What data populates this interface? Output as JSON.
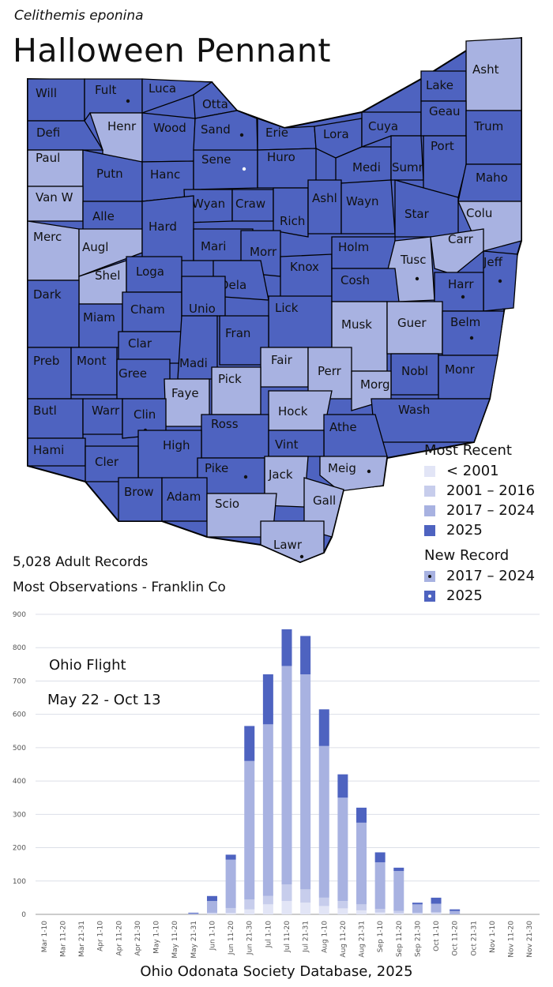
{
  "species": "Celithemis eponina",
  "common_name": "Halloween Pennant",
  "colors": {
    "pre2001": "#e2e5f6",
    "y2001_2016": "#c7cdec",
    "y2017_2024": "#a8b2e1",
    "y2025": "#4e63c0",
    "border": "#000000"
  },
  "legend": {
    "recent_title": "Most Recent",
    "recent_items": [
      "< 2001",
      "2001 – 2016",
      "2017 – 2024",
      "2025"
    ],
    "new_title": "New Record",
    "new_items": [
      "2017 – 2024",
      "2025"
    ]
  },
  "stats": {
    "records": "5,028 Adult Records",
    "most": "Most Observations - Franklin Co"
  },
  "footer": "Ohio Odonata Society Database, 2025",
  "map": {
    "counties": [
      {
        "name": "Will",
        "cat": "y2025"
      },
      {
        "name": "Fult",
        "cat": "y2025",
        "newrec": "y2025"
      },
      {
        "name": "Luca",
        "cat": "y2025"
      },
      {
        "name": "Otta",
        "cat": "y2025"
      },
      {
        "name": "Henr",
        "cat": "y2017_2024"
      },
      {
        "name": "Wood",
        "cat": "y2025"
      },
      {
        "name": "Sand",
        "cat": "y2025",
        "newrec": "y2025"
      },
      {
        "name": "Erie",
        "cat": "y2025"
      },
      {
        "name": "Lora",
        "cat": "y2025"
      },
      {
        "name": "Cuya",
        "cat": "y2025"
      },
      {
        "name": "Lake",
        "cat": "y2025"
      },
      {
        "name": "Asht",
        "cat": "y2017_2024"
      },
      {
        "name": "Geau",
        "cat": "y2025"
      },
      {
        "name": "Trum",
        "cat": "y2025"
      },
      {
        "name": "Defi",
        "cat": "y2025"
      },
      {
        "name": "Paul",
        "cat": "y2017_2024"
      },
      {
        "name": "Putn",
        "cat": "y2025"
      },
      {
        "name": "Hanc",
        "cat": "y2025"
      },
      {
        "name": "Sene",
        "cat": "y2025",
        "newrec": "y2017_2024"
      },
      {
        "name": "Huro",
        "cat": "y2025"
      },
      {
        "name": "Medi",
        "cat": "y2025"
      },
      {
        "name": "Summ",
        "cat": "y2025"
      },
      {
        "name": "Port",
        "cat": "y2025"
      },
      {
        "name": "Maho",
        "cat": "y2025"
      },
      {
        "name": "Van W",
        "cat": "y2017_2024"
      },
      {
        "name": "Alle",
        "cat": "y2025"
      },
      {
        "name": "Wyan",
        "cat": "y2025"
      },
      {
        "name": "Craw",
        "cat": "y2025"
      },
      {
        "name": "Rich",
        "cat": "y2025"
      },
      {
        "name": "Ashl",
        "cat": "y2025"
      },
      {
        "name": "Wayn",
        "cat": "y2025"
      },
      {
        "name": "Star",
        "cat": "y2025"
      },
      {
        "name": "Colu",
        "cat": "y2017_2024"
      },
      {
        "name": "Merc",
        "cat": "y2017_2024"
      },
      {
        "name": "Augl",
        "cat": "y2017_2024"
      },
      {
        "name": "Hard",
        "cat": "y2025"
      },
      {
        "name": "Mari",
        "cat": "y2025"
      },
      {
        "name": "Morr",
        "cat": "y2025"
      },
      {
        "name": "Knox",
        "cat": "y2025"
      },
      {
        "name": "Holm",
        "cat": "y2025"
      },
      {
        "name": "Tusc",
        "cat": "y2017_2024",
        "newrec": "y2025"
      },
      {
        "name": "Carr",
        "cat": "y2017_2024"
      },
      {
        "name": "Jeff",
        "cat": "y2025",
        "newrec": "y2025"
      },
      {
        "name": "Shel",
        "cat": "y2017_2024"
      },
      {
        "name": "Loga",
        "cat": "y2025"
      },
      {
        "name": "Dela",
        "cat": "y2025"
      },
      {
        "name": "Lick",
        "cat": "y2025"
      },
      {
        "name": "Cosh",
        "cat": "y2025"
      },
      {
        "name": "Harr",
        "cat": "y2025",
        "newrec": "y2025"
      },
      {
        "name": "Dark",
        "cat": "y2025"
      },
      {
        "name": "Miam",
        "cat": "y2025"
      },
      {
        "name": "Cham",
        "cat": "y2025"
      },
      {
        "name": "Unio",
        "cat": "y2025"
      },
      {
        "name": "Fran",
        "cat": "y2025"
      },
      {
        "name": "Musk",
        "cat": "y2017_2024"
      },
      {
        "name": "Guer",
        "cat": "y2017_2024"
      },
      {
        "name": "Belm",
        "cat": "y2025",
        "newrec": "y2025"
      },
      {
        "name": "Clar",
        "cat": "y2025"
      },
      {
        "name": "Madi",
        "cat": "y2025"
      },
      {
        "name": "Fair",
        "cat": "y2017_2024"
      },
      {
        "name": "Perr",
        "cat": "y2017_2024"
      },
      {
        "name": "Nobl",
        "cat": "y2025"
      },
      {
        "name": "Monr",
        "cat": "y2025"
      },
      {
        "name": "Preb",
        "cat": "y2025"
      },
      {
        "name": "Mont",
        "cat": "y2025"
      },
      {
        "name": "Gree",
        "cat": "y2025"
      },
      {
        "name": "Pick",
        "cat": "y2017_2024"
      },
      {
        "name": "Morg",
        "cat": "y2017_2024"
      },
      {
        "name": "Faye",
        "cat": "y2017_2024"
      },
      {
        "name": "Wash",
        "cat": "y2025"
      },
      {
        "name": "Butl",
        "cat": "y2025"
      },
      {
        "name": "Warr",
        "cat": "y2025"
      },
      {
        "name": "Clin",
        "cat": "y2025",
        "newrec": "y2025"
      },
      {
        "name": "Hock",
        "cat": "y2017_2024"
      },
      {
        "name": "Athe",
        "cat": "y2025"
      },
      {
        "name": "Ross",
        "cat": "y2025"
      },
      {
        "name": "Hami",
        "cat": "y2025"
      },
      {
        "name": "High",
        "cat": "y2025"
      },
      {
        "name": "Vint",
        "cat": "y2025"
      },
      {
        "name": "Meig",
        "cat": "y2017_2024",
        "newrec": "y2025"
      },
      {
        "name": "Cler",
        "cat": "y2025"
      },
      {
        "name": "Pike",
        "cat": "y2025",
        "newrec": "y2025"
      },
      {
        "name": "Jack",
        "cat": "y2017_2024"
      },
      {
        "name": "Brow",
        "cat": "y2025"
      },
      {
        "name": "Adam",
        "cat": "y2025"
      },
      {
        "name": "Scio",
        "cat": "y2017_2024"
      },
      {
        "name": "Gall",
        "cat": "y2017_2024"
      },
      {
        "name": "Lawr",
        "cat": "y2017_2024",
        "newrec": "y2017_2024"
      }
    ]
  },
  "chart_data": {
    "type": "bar",
    "stacked": true,
    "annotation_title": "Ohio Flight",
    "annotation_range": "May 22 - Oct 13",
    "categories": [
      "Mar 1-10",
      "Mar 11-20",
      "Mar 21-31",
      "Apr 1-10",
      "Apr 11-20",
      "Apr 21-30",
      "May 1-10",
      "May 11-20",
      "May 21-31",
      "Jun 1-10",
      "Jun 11-20",
      "Jun 21-30",
      "Jul 1-10",
      "Jul 11-20",
      "Jul 21-31",
      "Aug 1-10",
      "Aug 11-20",
      "Aug 21-31",
      "Sep 1-10",
      "Sep 11-20",
      "Sep 21-30",
      "Oct 1-10",
      "Oct 11-20",
      "Oct 21-31",
      "Nov 1-10",
      "Nov 11-20",
      "Nov 21-30"
    ],
    "series": [
      {
        "color": "pre2001",
        "values": [
          0,
          0,
          0,
          0,
          0,
          0,
          0,
          0,
          0,
          2,
          4,
          15,
          30,
          40,
          35,
          25,
          18,
          12,
          6,
          3,
          2,
          3,
          0,
          0,
          0,
          0,
          0
        ]
      },
      {
        "color": "y2001_2016",
        "values": [
          0,
          0,
          0,
          0,
          0,
          0,
          0,
          0,
          0,
          3,
          15,
          30,
          25,
          50,
          40,
          25,
          22,
          18,
          10,
          7,
          3,
          4,
          0,
          0,
          0,
          0,
          0
        ]
      },
      {
        "color": "y2017_2024",
        "values": [
          0,
          0,
          0,
          0,
          0,
          0,
          0,
          0,
          3,
          35,
          145,
          415,
          515,
          655,
          645,
          455,
          310,
          245,
          140,
          120,
          25,
          25,
          10,
          0,
          0,
          0,
          0
        ]
      },
      {
        "color": "y2025",
        "values": [
          0,
          0,
          0,
          0,
          0,
          0,
          0,
          0,
          2,
          15,
          15,
          105,
          150,
          110,
          115,
          110,
          70,
          45,
          30,
          10,
          5,
          18,
          5,
          0,
          0,
          0,
          0
        ]
      }
    ],
    "ylim": [
      0,
      900
    ],
    "yticks": [
      0,
      100,
      200,
      300,
      400,
      500,
      600,
      700,
      800,
      900
    ],
    "grid": true
  }
}
